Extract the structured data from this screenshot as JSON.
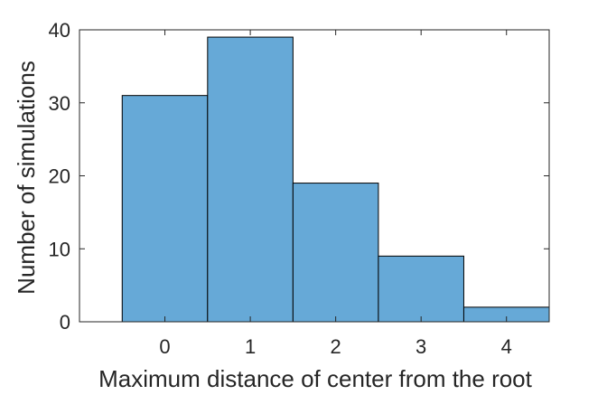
{
  "chart_data": {
    "type": "bar",
    "title": "",
    "xlabel": "Maximum distance of center from the root",
    "ylabel": "Number of simulations",
    "categories": [
      "0",
      "1",
      "2",
      "3",
      "4"
    ],
    "values": [
      31,
      39,
      19,
      9,
      2
    ],
    "xlim": [
      -1,
      4.5
    ],
    "ylim": [
      0,
      40
    ],
    "yticks": [
      0,
      10,
      20,
      30,
      40
    ],
    "xticks": [
      0,
      1,
      2,
      3,
      4
    ],
    "grid": false,
    "legend": "none",
    "bar_color": "#66a9d7",
    "bar_edge_color": "#000000",
    "axis_color": "#262626"
  }
}
